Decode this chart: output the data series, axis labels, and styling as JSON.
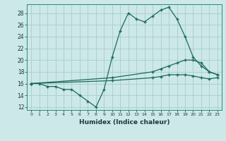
{
  "xlabel": "Humidex (Indice chaleur)",
  "bg_color": "#cce8e8",
  "grid_color": "#aacccc",
  "line_color": "#1a6b5a",
  "xlim": [
    -0.5,
    23.5
  ],
  "ylim": [
    11.5,
    29.5
  ],
  "xticks": [
    0,
    1,
    2,
    3,
    4,
    5,
    6,
    7,
    8,
    9,
    10,
    11,
    12,
    13,
    14,
    15,
    16,
    17,
    18,
    19,
    20,
    21,
    22,
    23
  ],
  "yticks": [
    12,
    14,
    16,
    18,
    20,
    22,
    24,
    26,
    28
  ],
  "line1_x": [
    0,
    1,
    2,
    3,
    4,
    5,
    6,
    7,
    8,
    9,
    10,
    11,
    12,
    13,
    14,
    15,
    16,
    17,
    18,
    19,
    20,
    21,
    22,
    23
  ],
  "line1_y": [
    16,
    16,
    15.5,
    15.5,
    15,
    15,
    14,
    13,
    12,
    15,
    20.5,
    25,
    28,
    27,
    26.5,
    27.5,
    28.5,
    29,
    27,
    24,
    20.5,
    19,
    18,
    17.5
  ],
  "line2_x": [
    0,
    10,
    15,
    16,
    17,
    18,
    19,
    20,
    21,
    22,
    23
  ],
  "line2_y": [
    16,
    17,
    18,
    18.5,
    19,
    19.5,
    20,
    20,
    19.5,
    18,
    17.5
  ],
  "line3_x": [
    0,
    10,
    15,
    16,
    17,
    18,
    19,
    20,
    21,
    22,
    23
  ],
  "line3_y": [
    16,
    16.5,
    17,
    17.2,
    17.5,
    17.5,
    17.5,
    17.3,
    17,
    16.8,
    17
  ]
}
